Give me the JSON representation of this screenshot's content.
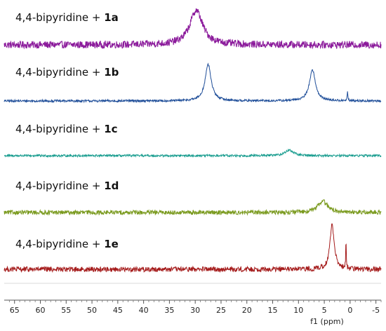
{
  "chart_data": {
    "type": "line",
    "xlabel": "f1 (ppm)",
    "x_reversed": true,
    "xlim": [
      67,
      -6
    ],
    "x_ticks": [
      65,
      60,
      55,
      50,
      45,
      40,
      35,
      30,
      25,
      20,
      15,
      10,
      5,
      0,
      -5
    ],
    "x_tick_labels": [
      "65",
      "60",
      "55",
      "50",
      "45",
      "40",
      "35",
      "30",
      "25",
      "20",
      "15",
      "10",
      "5",
      "0",
      "-5"
    ],
    "grid": false,
    "legend": "none",
    "series": [
      {
        "label_prefix": "4,4-bipyridine + ",
        "label_bold": "1a",
        "color": "#8B1A9B",
        "noise": 1.0,
        "peaks": [
          {
            "ppm": 29.8,
            "height": 9.5,
            "width": 1.5
          }
        ]
      },
      {
        "label_prefix": "4,4-bipyridine + ",
        "label_bold": "1b",
        "color": "#1F4E99",
        "noise": 0.3,
        "peaks": [
          {
            "ppm": 27.5,
            "height": 10.0,
            "width": 0.7
          },
          {
            "ppm": 7.3,
            "height": 8.5,
            "width": 0.7
          },
          {
            "ppm": 0.5,
            "height": 2.5,
            "width": 0.08
          }
        ]
      },
      {
        "label_prefix": "4,4-bipyridine + ",
        "label_bold": "1c",
        "color": "#179C8E",
        "noise": 0.3,
        "peaks": [
          {
            "ppm": 11.8,
            "height": 1.5,
            "width": 1.0
          }
        ]
      },
      {
        "label_prefix": "4,4-bipyridine + ",
        "label_bold": "1d",
        "color": "#7A9A1E",
        "noise": 0.6,
        "peaks": [
          {
            "ppm": 5.3,
            "height": 3.2,
            "width": 1.1
          }
        ]
      },
      {
        "label_prefix": "4,4-bipyridine + ",
        "label_bold": "1e",
        "color": "#A51C1C",
        "noise": 0.7,
        "peaks": [
          {
            "ppm": 3.5,
            "height": 12.0,
            "width": 0.5
          },
          {
            "ppm": 0.8,
            "height": 9.0,
            "width": 0.06
          }
        ]
      }
    ]
  }
}
